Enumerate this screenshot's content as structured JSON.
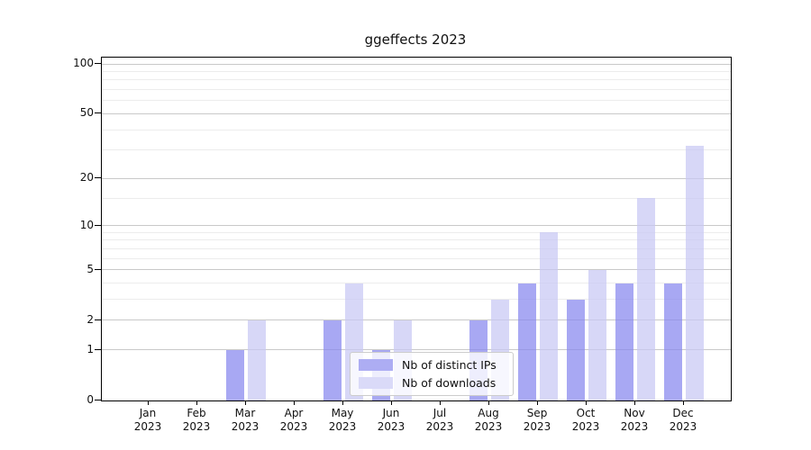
{
  "chart_data": {
    "type": "bar",
    "title": "ggeffects 2023",
    "categories": [
      "Jan 2023",
      "Feb 2023",
      "Mar 2023",
      "Apr 2023",
      "May 2023",
      "Jun 2023",
      "Jul 2023",
      "Aug 2023",
      "Sep 2023",
      "Oct 2023",
      "Nov 2023",
      "Dec 2023"
    ],
    "series": [
      {
        "name": "Nb of distinct IPs",
        "values": [
          0,
          0,
          1,
          0,
          2,
          1,
          0,
          2,
          4,
          3,
          4,
          4
        ]
      },
      {
        "name": "Nb of downloads",
        "values": [
          0,
          0,
          2,
          0,
          4,
          2,
          0,
          3,
          9,
          5,
          15,
          32
        ]
      }
    ],
    "xlabel": "",
    "ylabel": "",
    "y_scale": "log1p",
    "ylim": [
      0,
      100
    ],
    "y_ticks": [
      0,
      1,
      2,
      5,
      10,
      20,
      50,
      100
    ],
    "y_minor_gridlines": [
      3,
      4,
      6,
      7,
      8,
      9,
      15,
      30,
      40,
      60,
      70,
      80,
      90
    ],
    "grid": true,
    "legend_position": "lower center"
  },
  "colors": {
    "ips_bar": "#8686ee",
    "downloads_bar": "#c7c7f4",
    "ips_swatch": "#adadf3",
    "downloads_swatch": "#dadaf8",
    "grid_major": "#c9c9c9",
    "grid_minor": "#ececec",
    "spine": "#000000"
  }
}
